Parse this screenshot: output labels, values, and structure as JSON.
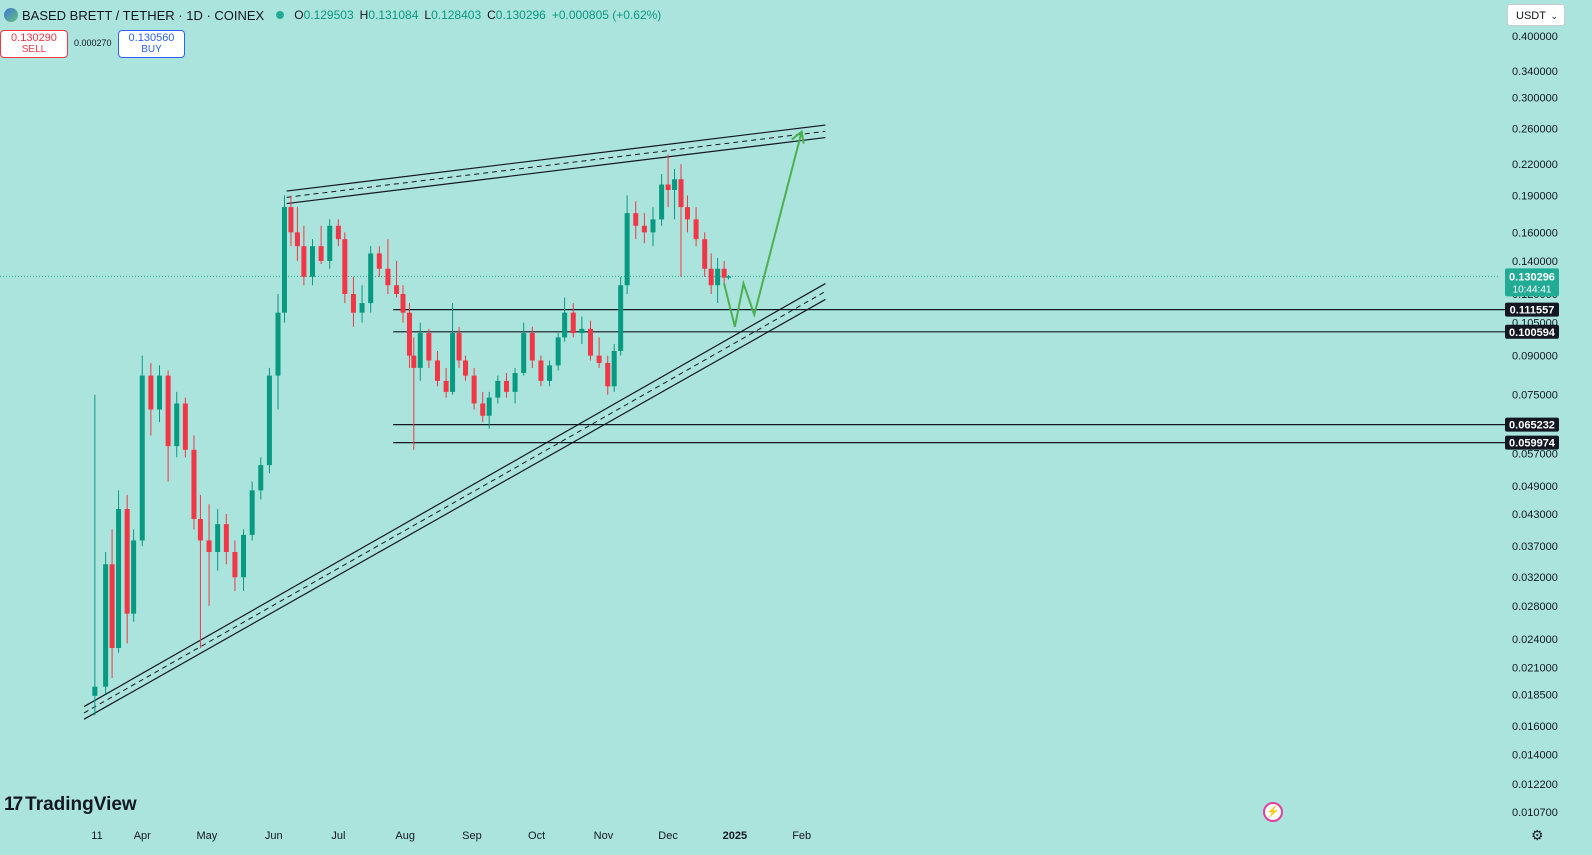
{
  "header": {
    "symbol_title": "BASED BRETT / TETHER · 1D · COINEX",
    "open_label": "O",
    "open": "0.129503",
    "high_label": "H",
    "high": "0.131084",
    "low_label": "L",
    "low": "0.128403",
    "close_label": "C",
    "close": "0.130296",
    "change": "+0.000805 (+0.62%)"
  },
  "trade": {
    "sell_price": "0.130290",
    "sell_label": "SELL",
    "spread": "0.000270",
    "buy_price": "0.130560",
    "buy_label": "BUY"
  },
  "currency": {
    "label": "USDT",
    "chevron": "⌄"
  },
  "branding": {
    "logo_mark": "17",
    "logo_text": "TradingView"
  },
  "colors": {
    "background": "#aae4dc",
    "up": "#089981",
    "down": "#f23645",
    "projection": "#4caf50",
    "line": "#131722"
  },
  "icons": [
    "symbol-icon",
    "status-dot-icon",
    "chevron-down-icon",
    "bolt-icon",
    "gear-icon"
  ],
  "chart_data": {
    "type": "candlestick",
    "y_scale": "log",
    "ylim": [
      0.0098,
      0.44
    ],
    "price_axis_ticks": [
      "0.400000",
      "0.340000",
      "0.300000",
      "0.260000",
      "0.220000",
      "0.190000",
      "0.160000",
      "0.140000",
      "0.120000",
      "0.105000",
      "0.090000",
      "0.075000",
      "0.065000",
      "0.057000",
      "0.049000",
      "0.043000",
      "0.037000",
      "0.032000",
      "0.028000",
      "0.024000",
      "0.021000",
      "0.018500",
      "0.016000",
      "0.014000",
      "0.012200",
      "0.010700"
    ],
    "time_axis_ticks": [
      {
        "label": "11",
        "date": "2024-03-11"
      },
      {
        "label": "Apr",
        "date": "2024-04-01"
      },
      {
        "label": "May",
        "date": "2024-05-01"
      },
      {
        "label": "Jun",
        "date": "2024-06-01"
      },
      {
        "label": "Jul",
        "date": "2024-07-01"
      },
      {
        "label": "Aug",
        "date": "2024-08-01"
      },
      {
        "label": "Sep",
        "date": "2024-09-01"
      },
      {
        "label": "Oct",
        "date": "2024-10-01"
      },
      {
        "label": "Nov",
        "date": "2024-11-01"
      },
      {
        "label": "Dec",
        "date": "2024-12-01"
      },
      {
        "label": "2025",
        "date": "2025-01-01",
        "bold": true
      },
      {
        "label": "Feb",
        "date": "2025-02-01"
      }
    ],
    "current_price": {
      "value": 0.130296,
      "label": "0.130296",
      "countdown": "10:44:41"
    },
    "horizontal_levels": [
      {
        "value": 0.111557,
        "label": "0.111557",
        "from": "2024-08-01"
      },
      {
        "value": 0.100594,
        "label": "0.100594",
        "from": "2024-08-01"
      },
      {
        "value": 0.065232,
        "label": "0.065232",
        "from": "2024-08-01"
      },
      {
        "value": 0.059974,
        "label": "0.059974",
        "from": "2024-08-01"
      }
    ],
    "candles": [
      [
        "2024-03-10",
        0.0184,
        0.075,
        0.0168,
        0.0192
      ],
      [
        "2024-03-15",
        0.0192,
        0.036,
        0.0186,
        0.034
      ],
      [
        "2024-03-18",
        0.034,
        0.04,
        0.02,
        0.023
      ],
      [
        "2024-03-21",
        0.023,
        0.048,
        0.0225,
        0.044
      ],
      [
        "2024-03-25",
        0.044,
        0.047,
        0.0235,
        0.027
      ],
      [
        "2024-03-28",
        0.027,
        0.04,
        0.026,
        0.038
      ],
      [
        "2024-04-01",
        0.038,
        0.09,
        0.037,
        0.082
      ],
      [
        "2024-04-05",
        0.082,
        0.087,
        0.062,
        0.07
      ],
      [
        "2024-04-09",
        0.07,
        0.086,
        0.066,
        0.082
      ],
      [
        "2024-04-13",
        0.082,
        0.084,
        0.05,
        0.059
      ],
      [
        "2024-04-17",
        0.059,
        0.076,
        0.056,
        0.072
      ],
      [
        "2024-04-21",
        0.072,
        0.074,
        0.056,
        0.058
      ],
      [
        "2024-04-25",
        0.058,
        0.062,
        0.04,
        0.042
      ],
      [
        "2024-04-28",
        0.042,
        0.047,
        0.023,
        0.038
      ],
      [
        "2024-05-02",
        0.038,
        0.045,
        0.028,
        0.036
      ],
      [
        "2024-05-06",
        0.036,
        0.044,
        0.033,
        0.041
      ],
      [
        "2024-05-10",
        0.041,
        0.043,
        0.034,
        0.036
      ],
      [
        "2024-05-14",
        0.036,
        0.038,
        0.03,
        0.032
      ],
      [
        "2024-05-18",
        0.032,
        0.04,
        0.03,
        0.039
      ],
      [
        "2024-05-22",
        0.039,
        0.05,
        0.038,
        0.048
      ],
      [
        "2024-05-26",
        0.048,
        0.056,
        0.046,
        0.054
      ],
      [
        "2024-05-30",
        0.054,
        0.085,
        0.052,
        0.082
      ],
      [
        "2024-06-03",
        0.082,
        0.12,
        0.07,
        0.11
      ],
      [
        "2024-06-06",
        0.11,
        0.19,
        0.105,
        0.18
      ],
      [
        "2024-06-09",
        0.18,
        0.19,
        0.15,
        0.16
      ],
      [
        "2024-06-12",
        0.16,
        0.18,
        0.14,
        0.15
      ],
      [
        "2024-06-15",
        0.15,
        0.165,
        0.125,
        0.13
      ],
      [
        "2024-06-19",
        0.13,
        0.155,
        0.125,
        0.15
      ],
      [
        "2024-06-23",
        0.15,
        0.165,
        0.138,
        0.14
      ],
      [
        "2024-06-27",
        0.14,
        0.17,
        0.135,
        0.165
      ],
      [
        "2024-07-01",
        0.165,
        0.17,
        0.15,
        0.155
      ],
      [
        "2024-07-04",
        0.155,
        0.16,
        0.115,
        0.12
      ],
      [
        "2024-07-08",
        0.12,
        0.13,
        0.103,
        0.11
      ],
      [
        "2024-07-12",
        0.11,
        0.125,
        0.105,
        0.115
      ],
      [
        "2024-07-16",
        0.115,
        0.15,
        0.11,
        0.145
      ],
      [
        "2024-07-20",
        0.145,
        0.15,
        0.13,
        0.135
      ],
      [
        "2024-07-24",
        0.135,
        0.155,
        0.12,
        0.125
      ],
      [
        "2024-07-28",
        0.125,
        0.14,
        0.118,
        0.12
      ],
      [
        "2024-07-31",
        0.12,
        0.125,
        0.105,
        0.11
      ],
      [
        "2024-08-03",
        0.11,
        0.115,
        0.085,
        0.09
      ],
      [
        "2024-08-05",
        0.09,
        0.098,
        0.058,
        0.085
      ],
      [
        "2024-08-08",
        0.085,
        0.105,
        0.08,
        0.1
      ],
      [
        "2024-08-12",
        0.1,
        0.102,
        0.085,
        0.088
      ],
      [
        "2024-08-16",
        0.088,
        0.092,
        0.078,
        0.08
      ],
      [
        "2024-08-20",
        0.08,
        0.085,
        0.074,
        0.076
      ],
      [
        "2024-08-23",
        0.076,
        0.115,
        0.075,
        0.1
      ],
      [
        "2024-08-26",
        0.1,
        0.103,
        0.085,
        0.088
      ],
      [
        "2024-08-29",
        0.088,
        0.09,
        0.08,
        0.082
      ],
      [
        "2024-09-02",
        0.082,
        0.085,
        0.07,
        0.072
      ],
      [
        "2024-09-06",
        0.072,
        0.076,
        0.066,
        0.068
      ],
      [
        "2024-09-09",
        0.068,
        0.076,
        0.064,
        0.074
      ],
      [
        "2024-09-13",
        0.074,
        0.082,
        0.072,
        0.08
      ],
      [
        "2024-09-17",
        0.08,
        0.083,
        0.074,
        0.076
      ],
      [
        "2024-09-21",
        0.076,
        0.085,
        0.072,
        0.083
      ],
      [
        "2024-09-25",
        0.083,
        0.105,
        0.082,
        0.1
      ],
      [
        "2024-09-29",
        0.1,
        0.103,
        0.085,
        0.088
      ],
      [
        "2024-10-03",
        0.088,
        0.09,
        0.078,
        0.08
      ],
      [
        "2024-10-07",
        0.08,
        0.088,
        0.078,
        0.086
      ],
      [
        "2024-10-11",
        0.086,
        0.1,
        0.084,
        0.098
      ],
      [
        "2024-10-14",
        0.098,
        0.118,
        0.096,
        0.11
      ],
      [
        "2024-10-18",
        0.11,
        0.115,
        0.098,
        0.1
      ],
      [
        "2024-10-22",
        0.1,
        0.108,
        0.095,
        0.102
      ],
      [
        "2024-10-26",
        0.102,
        0.106,
        0.088,
        0.09
      ],
      [
        "2024-10-30",
        0.09,
        0.098,
        0.085,
        0.087
      ],
      [
        "2024-11-03",
        0.087,
        0.09,
        0.075,
        0.078
      ],
      [
        "2024-11-06",
        0.078,
        0.095,
        0.076,
        0.092
      ],
      [
        "2024-11-09",
        0.092,
        0.13,
        0.09,
        0.125
      ],
      [
        "2024-11-12",
        0.125,
        0.19,
        0.12,
        0.175
      ],
      [
        "2024-11-16",
        0.175,
        0.185,
        0.155,
        0.165
      ],
      [
        "2024-11-20",
        0.165,
        0.175,
        0.152,
        0.16
      ],
      [
        "2024-11-24",
        0.16,
        0.18,
        0.15,
        0.17
      ],
      [
        "2024-11-28",
        0.17,
        0.21,
        0.165,
        0.2
      ],
      [
        "2024-12-01",
        0.2,
        0.23,
        0.18,
        0.195
      ],
      [
        "2024-12-04",
        0.195,
        0.215,
        0.17,
        0.205
      ],
      [
        "2024-12-07",
        0.205,
        0.22,
        0.13,
        0.18
      ],
      [
        "2024-12-10",
        0.18,
        0.19,
        0.16,
        0.17
      ],
      [
        "2024-12-14",
        0.17,
        0.18,
        0.15,
        0.155
      ],
      [
        "2024-12-18",
        0.155,
        0.16,
        0.13,
        0.135
      ],
      [
        "2024-12-21",
        0.135,
        0.145,
        0.12,
        0.125
      ],
      [
        "2024-12-24",
        0.125,
        0.142,
        0.115,
        0.135
      ],
      [
        "2024-12-27",
        0.135,
        0.14,
        0.125,
        0.1295
      ],
      [
        "2024-12-29",
        0.1295,
        0.1311,
        0.1284,
        0.1303
      ]
    ],
    "drawings": {
      "upper_channel": [
        {
          "date": "2024-06-07",
          "value": 0.194
        },
        {
          "date": "2025-02-12",
          "value": 0.264
        },
        {
          "date": "2024-06-07",
          "value": 0.183
        },
        {
          "date": "2025-02-12",
          "value": 0.249
        }
      ],
      "lower_channel": [
        {
          "date": "2024-03-05",
          "value": 0.0175
        },
        {
          "date": "2025-02-12",
          "value": 0.126
        },
        {
          "date": "2024-03-05",
          "value": 0.0165
        },
        {
          "date": "2025-02-12",
          "value": 0.117
        }
      ],
      "projection_path": [
        {
          "date": "2024-12-27",
          "value": 0.126
        },
        {
          "date": "2025-01-01",
          "value": 0.103
        },
        {
          "date": "2025-01-05",
          "value": 0.126
        },
        {
          "date": "2025-01-10",
          "value": 0.109
        },
        {
          "date": "2025-02-01",
          "value": 0.256
        }
      ]
    }
  }
}
